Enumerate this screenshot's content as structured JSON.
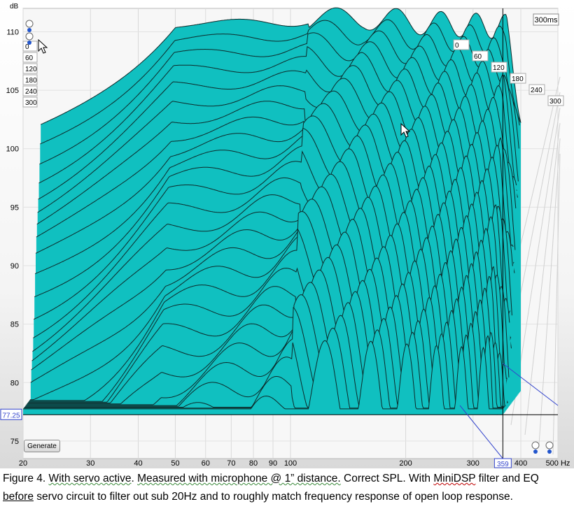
{
  "chart_data": {
    "type": "waterfall",
    "xlabel_unit": "Hz",
    "ylabel_unit": "dB",
    "x_scale": "log",
    "xlim": [
      20,
      500
    ],
    "ylim": [
      73.5,
      112
    ],
    "x_ticks": [
      "20",
      "30",
      "40",
      "50",
      "60",
      "70",
      "80",
      "90",
      "100",
      "200",
      "300",
      "400",
      "500 Hz"
    ],
    "x_tick_values": [
      20,
      30,
      40,
      50,
      60,
      70,
      80,
      90,
      100,
      200,
      300,
      400,
      500
    ],
    "y_ticks": [
      110,
      105,
      100,
      95,
      90,
      85,
      80,
      75
    ],
    "window_label": "300ms",
    "time_labels": [
      "0",
      "60",
      "120",
      "180",
      "240",
      "300"
    ],
    "cursor": {
      "x_value": "359",
      "y_value": "77.25"
    },
    "slice_count": 29,
    "front_slice_floor_db": 77.25,
    "fill_color": "#10c0c0",
    "line_color": "#0d2a2a",
    "grid": true
  },
  "ui": {
    "generate_button": "Generate"
  },
  "caption": {
    "p1": "Figure 4. ",
    "p2": "With servo active",
    "p3": ". ",
    "p4": "Measured with microphone @ 1” distance.",
    "p5": "  Correct SPL.  With ",
    "p6": "MiniDSP",
    "p7": " filter and EQ ",
    "p8": "before",
    "p9": " servo circuit to filter out sub 20Hz and to roughly match frequency response of open loop response."
  }
}
